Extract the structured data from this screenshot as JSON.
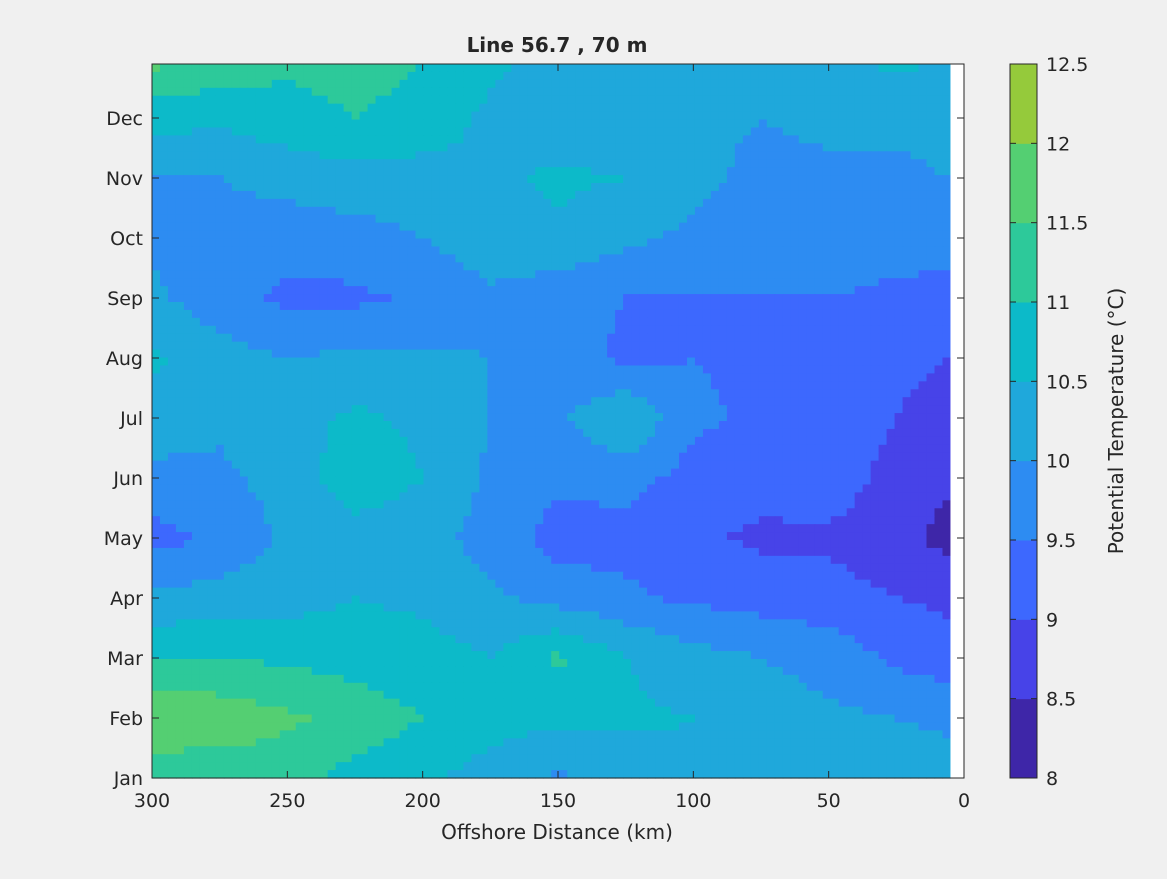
{
  "chart_data": {
    "type": "heatmap",
    "subtype": "filled-contour",
    "title": "Line 56.7 , 70 m",
    "xlabel": "Offshore Distance (km)",
    "ylabel": "",
    "x_reversed": true,
    "xlim": [
      300,
      0
    ],
    "x_ticks": [
      300,
      250,
      200,
      150,
      100,
      50,
      0
    ],
    "y_tick_labels": [
      "Jan",
      "Feb",
      "Mar",
      "Apr",
      "May",
      "Jun",
      "Jul",
      "Aug",
      "Sep",
      "Oct",
      "Nov",
      "Dec"
    ],
    "colorbar": {
      "label": "Potential Temperature (°C)",
      "range": [
        8,
        12.5
      ],
      "step": 0.5,
      "tick_values": [
        8,
        8.5,
        9,
        9.5,
        10,
        10.5,
        11,
        11.5,
        12,
        12.5
      ],
      "tick_labels": [
        "8",
        "8.5",
        "9",
        "9.5",
        "10",
        "10.5",
        "11",
        "11.5",
        "12",
        "12.5"
      ],
      "colors": [
        "#3e26a8",
        "#4743e8",
        "#3d68fe",
        "#2d8cf2",
        "#1fa8db",
        "#0cbac9",
        "#2dc99a",
        "#54cf72",
        "#95ca3b",
        "#d6b82e",
        "#fbbf3c",
        "#f6e020"
      ]
    },
    "x_km": [
      300,
      275,
      250,
      225,
      200,
      175,
      150,
      125,
      100,
      75,
      50,
      25,
      5
    ],
    "y_month_pos": [
      0.0,
      1,
      2,
      3,
      4,
      5,
      6,
      7,
      8,
      9,
      10,
      11,
      11.9
    ],
    "z": [
      [
        11.1,
        11.2,
        11.2,
        10.8,
        10.6,
        10.3,
        9.9,
        10.2,
        10.4,
        10.5,
        10.4,
        10.3,
        10.2
      ],
      [
        12.0,
        11.8,
        11.6,
        11.3,
        11.0,
        10.7,
        10.6,
        10.6,
        10.5,
        10.3,
        10.1,
        10.0,
        9.9
      ],
      [
        11.0,
        11.0,
        10.9,
        10.8,
        10.7,
        10.5,
        11.1,
        10.5,
        10.2,
        10.0,
        9.8,
        9.4,
        9.2
      ],
      [
        10.1,
        10.2,
        10.3,
        10.5,
        10.4,
        10.1,
        9.8,
        9.6,
        9.4,
        9.3,
        9.2,
        9.0,
        8.9
      ],
      [
        9.3,
        9.6,
        10.1,
        10.3,
        10.2,
        9.8,
        9.3,
        9.3,
        9.1,
        8.9,
        8.9,
        8.7,
        8.3
      ],
      [
        9.9,
        9.9,
        10.2,
        10.8,
        10.5,
        9.9,
        9.6,
        9.7,
        9.3,
        9.2,
        9.3,
        8.8,
        8.6
      ],
      [
        10.2,
        10.1,
        10.3,
        10.6,
        10.4,
        10.0,
        9.9,
        10.5,
        9.6,
        9.4,
        9.3,
        9.0,
        8.8
      ],
      [
        10.6,
        10.2,
        10.0,
        10.1,
        10.1,
        10.0,
        9.7,
        9.4,
        9.5,
        9.4,
        9.3,
        9.1,
        9.0
      ],
      [
        10.1,
        9.7,
        9.4,
        9.4,
        9.6,
        9.9,
        9.7,
        9.5,
        9.5,
        9.5,
        9.5,
        9.4,
        9.4
      ],
      [
        9.9,
        9.8,
        9.7,
        9.8,
        10.0,
        10.3,
        10.4,
        10.1,
        9.9,
        9.8,
        9.8,
        9.7,
        9.6
      ],
      [
        10.0,
        10.0,
        10.2,
        10.3,
        10.3,
        10.4,
        10.6,
        10.5,
        10.1,
        9.9,
        9.9,
        9.9,
        10.0
      ],
      [
        10.7,
        10.6,
        10.8,
        11.0,
        10.8,
        10.4,
        10.2,
        10.1,
        10.1,
        10.0,
        10.1,
        10.1,
        10.2
      ],
      [
        11.6,
        11.3,
        11.1,
        11.2,
        11.0,
        10.6,
        10.3,
        10.1,
        10.1,
        10.2,
        10.3,
        10.6,
        10.4
      ]
    ]
  }
}
